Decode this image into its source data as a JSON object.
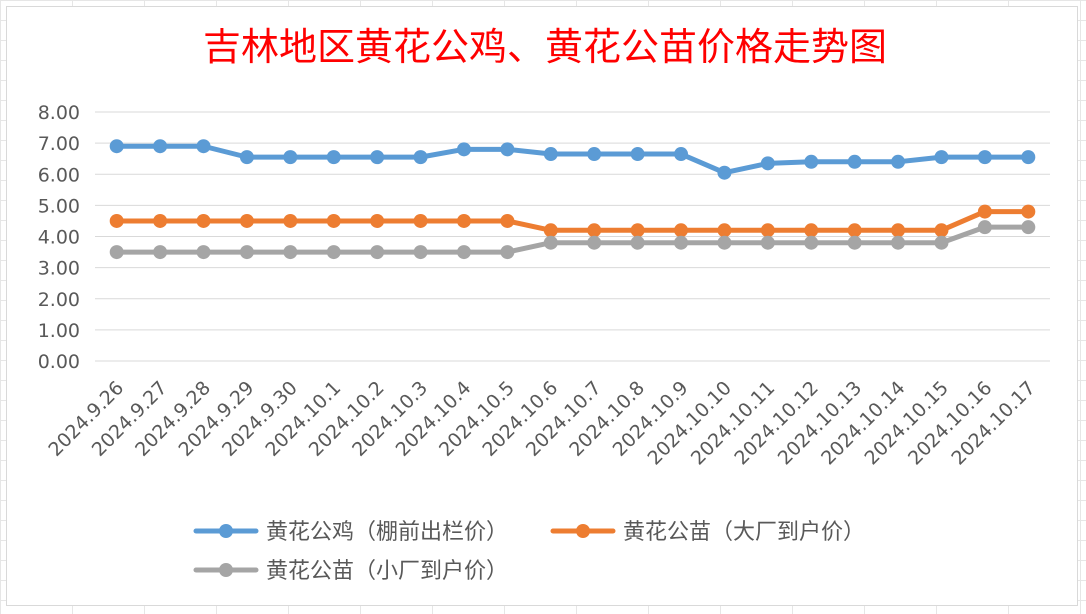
{
  "chart_data": {
    "type": "line",
    "title": "吉林地区黄花公鸡、黄花公苗价格走势图",
    "xlabel": "",
    "ylabel": "",
    "ylim": [
      0,
      8
    ],
    "yticks": [
      "0.00",
      "1.00",
      "2.00",
      "3.00",
      "4.00",
      "5.00",
      "6.00",
      "7.00",
      "8.00"
    ],
    "grid": true,
    "legend_position": "bottom",
    "categories": [
      "2024.9.26",
      "2024.9.27",
      "2024.9.28",
      "2024.9.29",
      "2024.9.30",
      "2024.10.1",
      "2024.10.2",
      "2024.10.3",
      "2024.10.4",
      "2024.10.5",
      "2024.10.6",
      "2024.10.7",
      "2024.10.8",
      "2024.10.9",
      "2024.10.10",
      "2024.10.11",
      "2024.10.12",
      "2024.10.13",
      "2024.10.14",
      "2024.10.15",
      "2024.10.16",
      "2024.10.17"
    ],
    "series": [
      {
        "name": "黄花公鸡（棚前出栏价）",
        "color": "#5b9bd5",
        "values": [
          6.9,
          6.9,
          6.9,
          6.55,
          6.55,
          6.55,
          6.55,
          6.55,
          6.8,
          6.8,
          6.65,
          6.65,
          6.65,
          6.65,
          6.05,
          6.35,
          6.4,
          6.4,
          6.4,
          6.55,
          6.55,
          6.55
        ]
      },
      {
        "name": "黄花公苗（大厂到户价）",
        "color": "#ed7d31",
        "values": [
          4.5,
          4.5,
          4.5,
          4.5,
          4.5,
          4.5,
          4.5,
          4.5,
          4.5,
          4.5,
          4.2,
          4.2,
          4.2,
          4.2,
          4.2,
          4.2,
          4.2,
          4.2,
          4.2,
          4.2,
          4.8,
          4.8
        ]
      },
      {
        "name": "黄花公苗（小厂到户价）",
        "color": "#a5a5a5",
        "values": [
          3.5,
          3.5,
          3.5,
          3.5,
          3.5,
          3.5,
          3.5,
          3.5,
          3.5,
          3.5,
          3.8,
          3.8,
          3.8,
          3.8,
          3.8,
          3.8,
          3.8,
          3.8,
          3.8,
          3.8,
          4.3,
          4.3
        ]
      }
    ]
  },
  "colors": {
    "title": "#ff0000",
    "grid": "#d9d9d9",
    "axis_text": "#595959"
  }
}
